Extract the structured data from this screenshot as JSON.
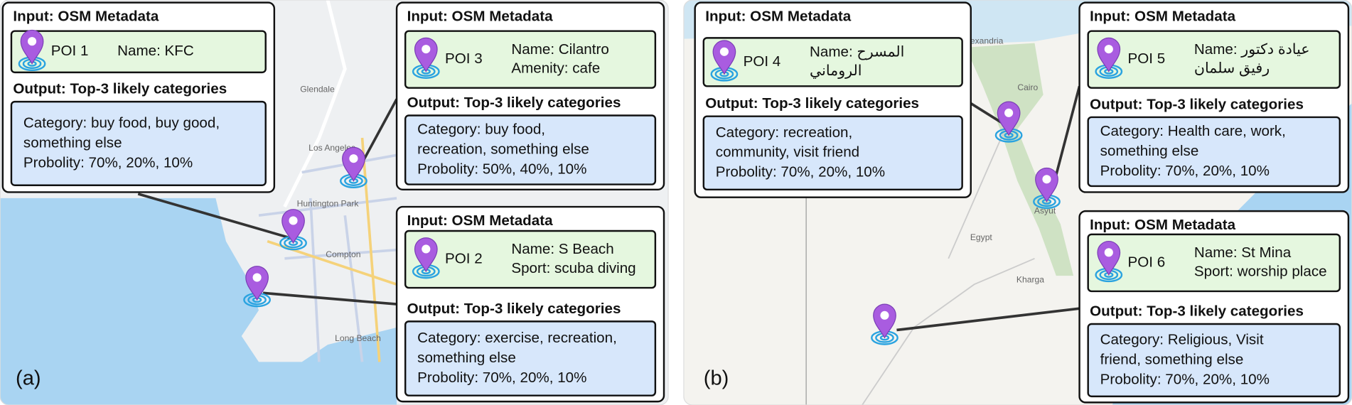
{
  "labels": {
    "input": "Input: OSM Metadata",
    "output": "Output: Top-3 likely categories"
  },
  "panels": [
    {
      "label": "(a)",
      "map_labels": [
        "Glendale",
        "Los Angeles",
        "Huntington Park",
        "Compton",
        "Long Beach"
      ],
      "pois": [
        {
          "poi": "POI 1",
          "metadata": [
            "Name: KFC"
          ],
          "output": [
            "Category: buy food, buy good,",
            "something else",
            "Probolity: 70%, 20%, 10%"
          ]
        },
        {
          "poi": "POI 3",
          "metadata": [
            "Name: Cilantro",
            "Amenity:  cafe"
          ],
          "output": [
            "Category: buy food,",
            "recreation, something else",
            "Probolity: 50%, 40%, 10%"
          ]
        },
        {
          "poi": "POI 2",
          "metadata": [
            "Name: S Beach",
            "Sport: scuba diving"
          ],
          "output": [
            "Category: exercise, recreation,",
            "something else",
            "Probolity: 70%, 20%, 10%"
          ]
        }
      ]
    },
    {
      "label": "(b)",
      "map_labels": [
        "Alexandria",
        "Cairo",
        "Egypt",
        "Asyut",
        "Kharga"
      ],
      "pois": [
        {
          "poi": "POI 4",
          "metadata": [
            "Name: المسرح",
            "الروماني"
          ],
          "output": [
            "Category: recreation,",
            "community, visit friend",
            "Probolity: 70%, 20%, 10%"
          ]
        },
        {
          "poi": "POI 5",
          "metadata": [
            "Name: عيادة دكتور",
            "رفيق سلمان"
          ],
          "output": [
            "Category: Health care, work,",
            "something else",
            "Probolity: 70%, 20%, 10%"
          ]
        },
        {
          "poi": "POI 6",
          "metadata": [
            "Name: St Mina",
            "Sport: worship place"
          ],
          "output": [
            "Category: Religious, Visit",
            "friend, something else",
            "Probolity: 70%, 20%, 10%"
          ]
        }
      ]
    }
  ]
}
